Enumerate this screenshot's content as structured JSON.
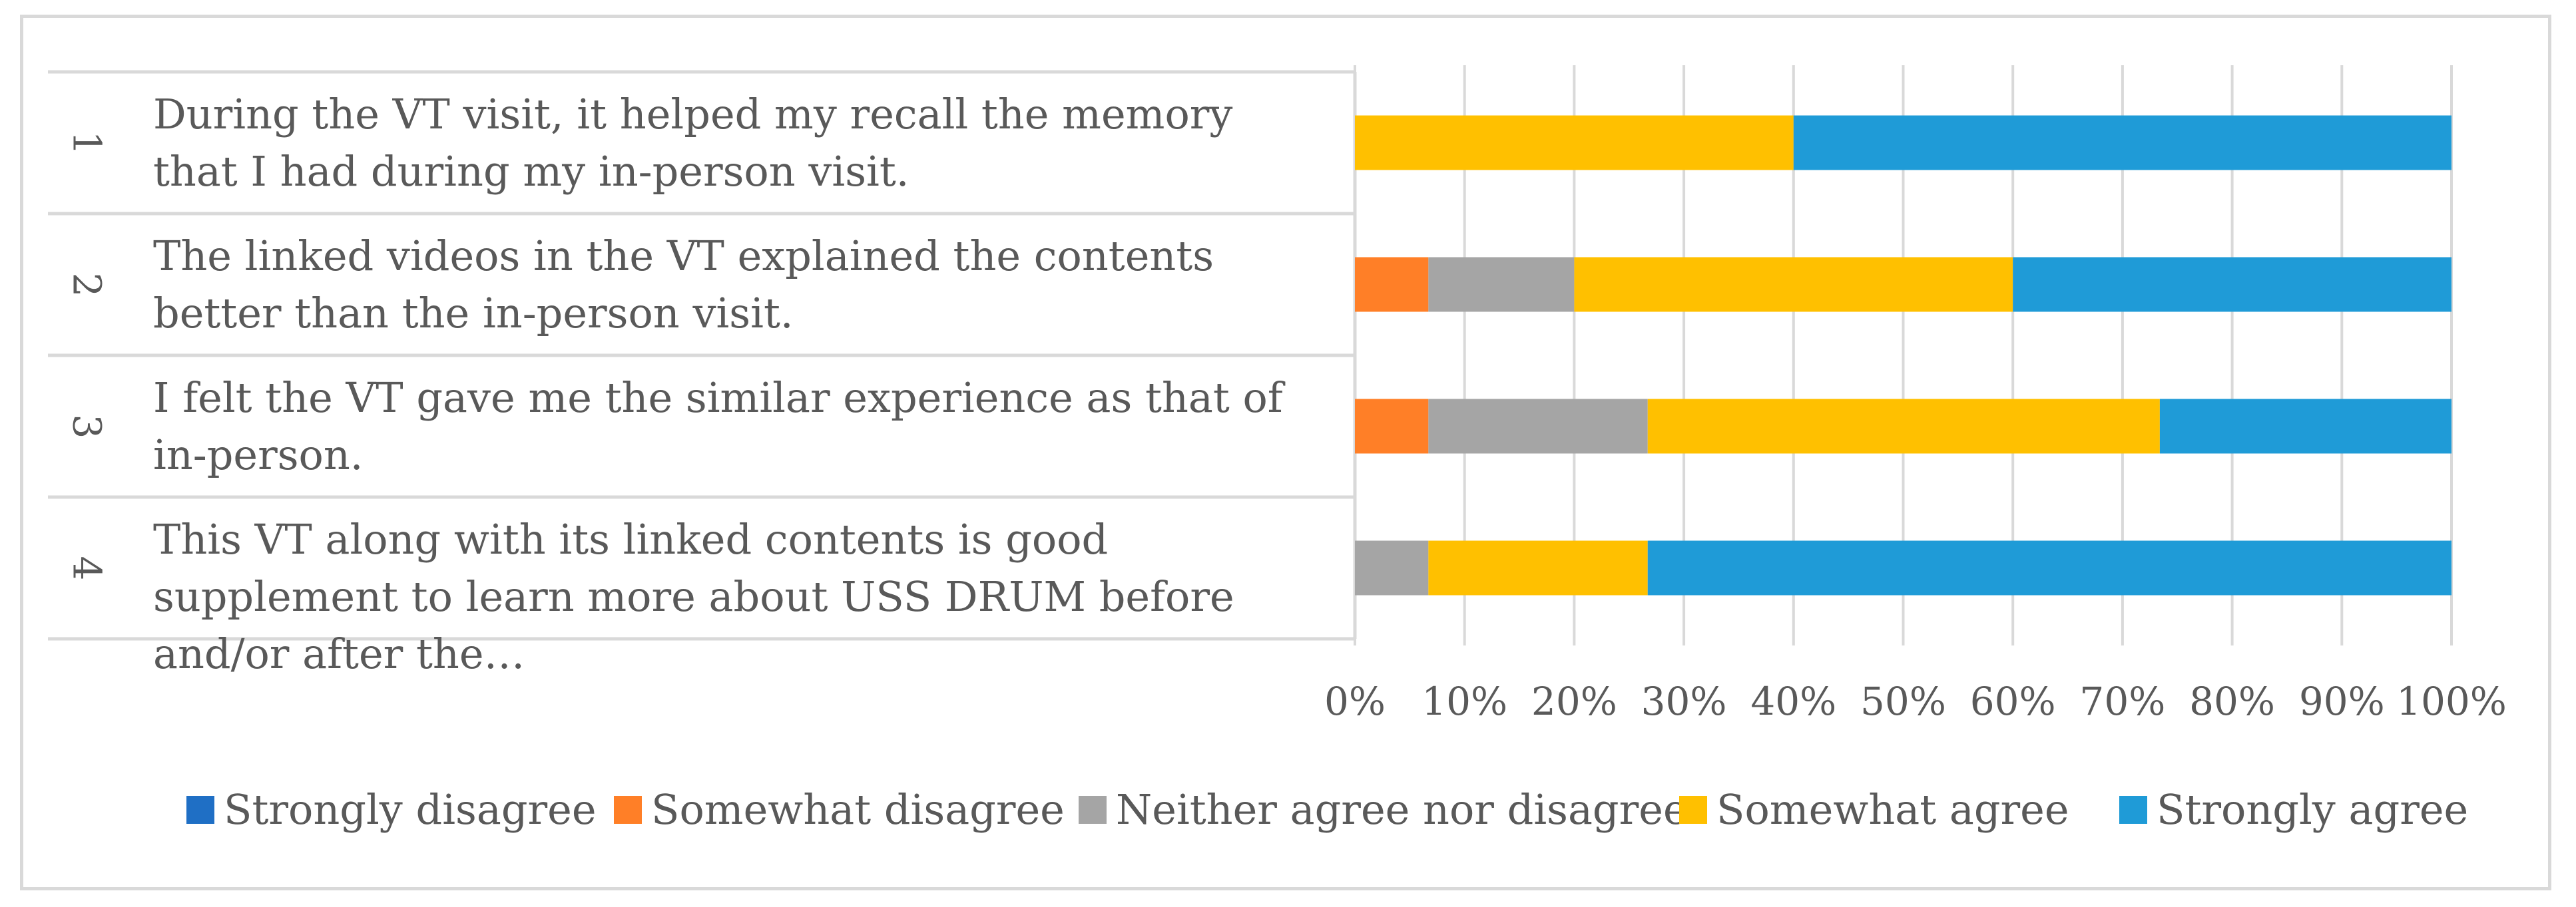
{
  "chart_data": {
    "type": "bar",
    "orientation": "horizontal",
    "stacked": true,
    "percent": true,
    "row_numbers": [
      "1",
      "2",
      "3",
      "4"
    ],
    "categories": [
      "During the VT visit, it helped my recall the memory that I had during my in-person visit.",
      "The linked videos in the VT explained the contents better than the in-person visit.",
      "I felt the VT gave me the similar experience as that of in-person.",
      "This VT along with its linked contents is good supplement to learn more about USS DRUM before and/or after the…"
    ],
    "series": [
      {
        "name": "Strongly disagree",
        "color": "#1f6fc5",
        "values": [
          0,
          0,
          0,
          0
        ]
      },
      {
        "name": "Somewhat disagree",
        "color": "#ff7f27",
        "values": [
          0,
          6.7,
          6.7,
          0
        ]
      },
      {
        "name": "Neither agree nor disagree",
        "color": "#a5a5a5",
        "values": [
          0,
          13.3,
          20,
          6.7
        ]
      },
      {
        "name": "Somewhat agree",
        "color": "#ffc000",
        "values": [
          40,
          40,
          46.7,
          20
        ]
      },
      {
        "name": "Strongly agree",
        "color": "#1f9bd7",
        "values": [
          60,
          40,
          26.6,
          73.3
        ]
      }
    ],
    "xlim": [
      0,
      100
    ],
    "x_ticks": [
      "0%",
      "10%",
      "20%",
      "30%",
      "40%",
      "50%",
      "60%",
      "70%",
      "80%",
      "90%",
      "100%"
    ],
    "grid": true,
    "legend_position": "bottom"
  }
}
